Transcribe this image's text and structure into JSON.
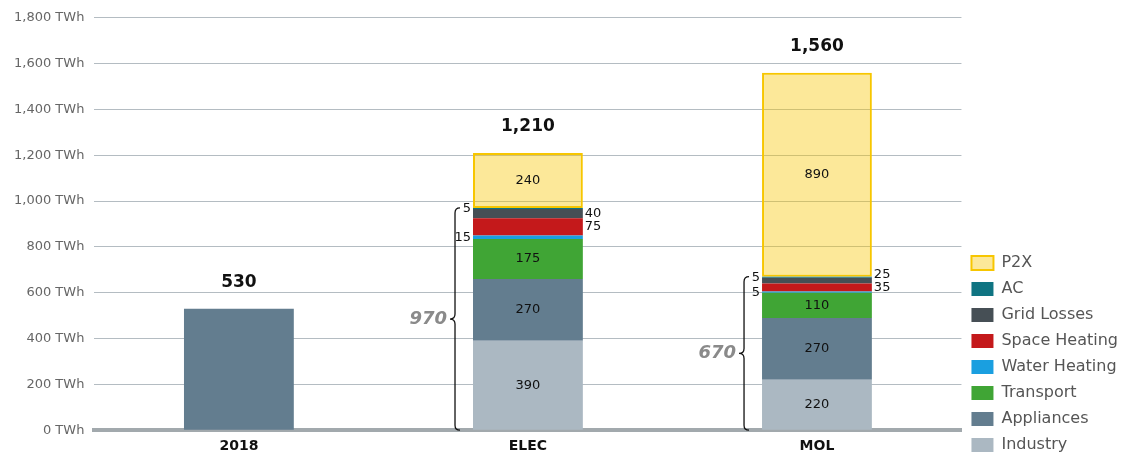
{
  "chart_data": {
    "type": "bar",
    "stacked": true,
    "categories": [
      "2018",
      "ELEC",
      "MOL"
    ],
    "series": [
      {
        "color": "#637d8f",
        "values": [
          530,
          null,
          null
        ]
      },
      {
        "name": "Industry",
        "color": "#abb8c2",
        "values": [
          null,
          390,
          220
        ],
        "value_labels": [
          null,
          "390",
          "220"
        ]
      },
      {
        "name": "Appliances",
        "color": "#637d8f",
        "values": [
          null,
          270,
          270
        ],
        "value_labels": [
          null,
          "270",
          "270"
        ]
      },
      {
        "name": "Transport",
        "color": "#40a535",
        "values": [
          null,
          175,
          110
        ],
        "value_labels": [
          null,
          "175",
          "110"
        ]
      },
      {
        "name": "Water Heating",
        "color": "#1a9fe0",
        "values": [
          null,
          15,
          5
        ],
        "value_labels": [
          null,
          "15",
          "5"
        ]
      },
      {
        "name": "Space Heating",
        "color": "#c4191b",
        "values": [
          null,
          75,
          35
        ],
        "value_labels": [
          null,
          "75",
          "35"
        ]
      },
      {
        "name": "Grid Losses",
        "color": "#464f55",
        "values": [
          null,
          40,
          25
        ],
        "value_labels": [
          null,
          "40",
          "25"
        ]
      },
      {
        "name": "AC",
        "color": "#0f7482",
        "values": [
          null,
          5,
          5
        ],
        "value_labels": [
          null,
          "5",
          "5"
        ]
      },
      {
        "name": "P2X",
        "color": "#f7c600",
        "line_style": "dashed",
        "values": [
          null,
          240,
          890
        ],
        "value_labels": [
          null,
          "240",
          "890"
        ]
      }
    ],
    "totals": [
      "530",
      "1,210",
      "1,560"
    ],
    "annotations": [
      "970",
      "670"
    ],
    "ylim": [
      0,
      1800
    ],
    "yticks": [
      {
        "value": 0,
        "label": "0 TWh"
      },
      {
        "value": 200,
        "label": "200 TWh"
      },
      {
        "value": 400,
        "label": "400 TWh"
      },
      {
        "value": 600,
        "label": "600 TWh"
      },
      {
        "value": 800,
        "label": "800 TWh"
      },
      {
        "value": 1000,
        "label": "1,000 TWh"
      },
      {
        "value": 1200,
        "label": "1,200 TWh"
      },
      {
        "value": 1400,
        "label": "1,400 TWh"
      },
      {
        "value": 1600,
        "label": "1,600 TWh"
      },
      {
        "value": 1800,
        "label": "1,800 TWh"
      }
    ],
    "grid": "y",
    "legend": "right"
  }
}
